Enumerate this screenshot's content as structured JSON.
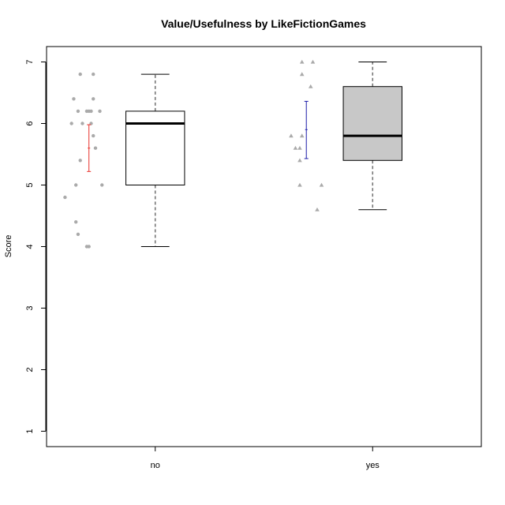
{
  "chart_data": {
    "type": "boxplot",
    "title": "Value/Usefulness by LikeFictionGames",
    "xlabel": "",
    "ylabel": "Score",
    "ylim": [
      0.75,
      7.25
    ],
    "yticks": [
      1,
      2,
      3,
      4,
      5,
      6,
      7
    ],
    "categories": [
      "no",
      "yes"
    ],
    "boxes": [
      {
        "category": "no",
        "min": 4.0,
        "q1": 5.0,
        "median": 6.0,
        "q3": 6.2,
        "max": 6.8,
        "fill": "#ffffff",
        "mean": 5.6,
        "ci_low": 5.22,
        "ci_high": 5.98,
        "ci_color": "#e8302a",
        "points": [
          {
            "y": 6.8,
            "dx": -0.04
          },
          {
            "y": 6.8,
            "dx": 0.02
          },
          {
            "y": 6.4,
            "dx": -0.07
          },
          {
            "y": 6.4,
            "dx": 0.02
          },
          {
            "y": 6.2,
            "dx": -0.05
          },
          {
            "y": 6.2,
            "dx": -0.01
          },
          {
            "y": 6.2,
            "dx": 0.0
          },
          {
            "y": 6.2,
            "dx": 0.01
          },
          {
            "y": 6.2,
            "dx": 0.05
          },
          {
            "y": 6.0,
            "dx": -0.08
          },
          {
            "y": 6.0,
            "dx": -0.03
          },
          {
            "y": 6.0,
            "dx": 0.01
          },
          {
            "y": 5.8,
            "dx": 0.02
          },
          {
            "y": 5.6,
            "dx": 0.03
          },
          {
            "y": 5.4,
            "dx": -0.04
          },
          {
            "y": 5.0,
            "dx": -0.06
          },
          {
            "y": 5.0,
            "dx": 0.06
          },
          {
            "y": 4.8,
            "dx": -0.11
          },
          {
            "y": 4.4,
            "dx": -0.06
          },
          {
            "y": 4.2,
            "dx": -0.05
          },
          {
            "y": 4.0,
            "dx": -0.01
          },
          {
            "y": 4.0,
            "dx": 0.0
          }
        ]
      },
      {
        "category": "yes",
        "min": 4.6,
        "q1": 5.4,
        "median": 5.8,
        "q3": 6.6,
        "max": 7.0,
        "fill": "#c8c8c8",
        "mean": 5.9,
        "ci_low": 5.43,
        "ci_high": 6.36,
        "ci_color": "#1a1aa8",
        "points": [
          {
            "y": 7.0,
            "dx": -0.02
          },
          {
            "y": 7.0,
            "dx": 0.03
          },
          {
            "y": 6.8,
            "dx": -0.02
          },
          {
            "y": 6.6,
            "dx": 0.02
          },
          {
            "y": 5.8,
            "dx": -0.07
          },
          {
            "y": 5.8,
            "dx": -0.02
          },
          {
            "y": 5.6,
            "dx": -0.05
          },
          {
            "y": 5.6,
            "dx": -0.03
          },
          {
            "y": 5.4,
            "dx": -0.03
          },
          {
            "y": 5.0,
            "dx": -0.03
          },
          {
            "y": 5.0,
            "dx": 0.07
          },
          {
            "y": 4.6,
            "dx": 0.05
          }
        ]
      }
    ],
    "box_outline": "#000000",
    "whisker_color": "#777777",
    "point_color": "#aaaaaa",
    "grid": false
  }
}
